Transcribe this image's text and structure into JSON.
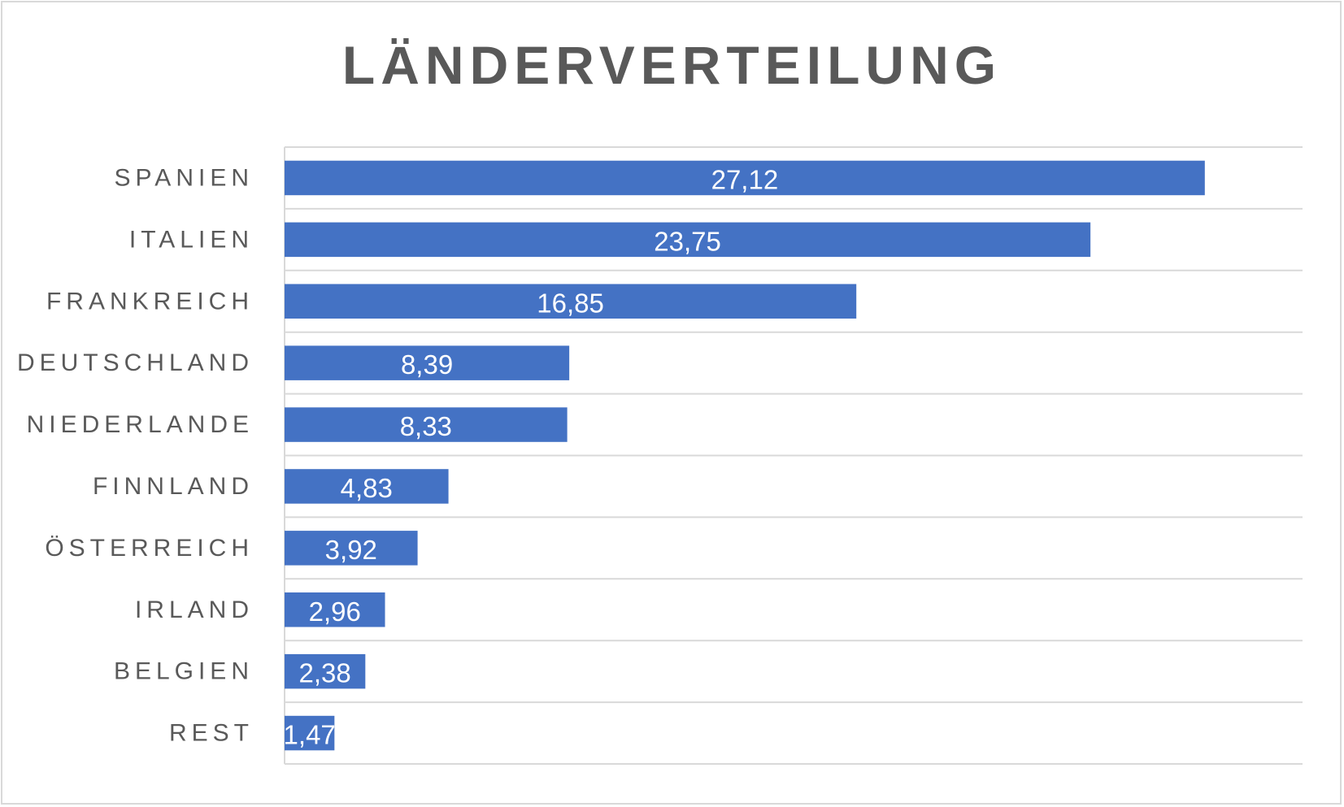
{
  "chart_data": {
    "type": "bar",
    "orientation": "horizontal",
    "title": "LÄNDERVERTEILUNG",
    "categories": [
      "SPANIEN",
      "ITALIEN",
      "FRANKREICH",
      "DEUTSCHLAND",
      "NIEDERLANDE",
      "FINNLAND",
      "ÖSTERREICH",
      "IRLAND",
      "BELGIEN",
      "REST"
    ],
    "values": [
      27.12,
      23.75,
      16.85,
      8.39,
      8.33,
      4.83,
      3.92,
      2.96,
      2.38,
      1.47
    ],
    "value_labels": [
      "27,12",
      "23,75",
      "16,85",
      "8,39",
      "8,33",
      "4,83",
      "3,92",
      "2,96",
      "2,38",
      "1,47"
    ],
    "xlim": [
      0,
      30
    ],
    "grid": true,
    "legend": "none",
    "bar_color": "#4472c4",
    "gridline_color": "#d9d9d9",
    "label_color": "#595959"
  }
}
